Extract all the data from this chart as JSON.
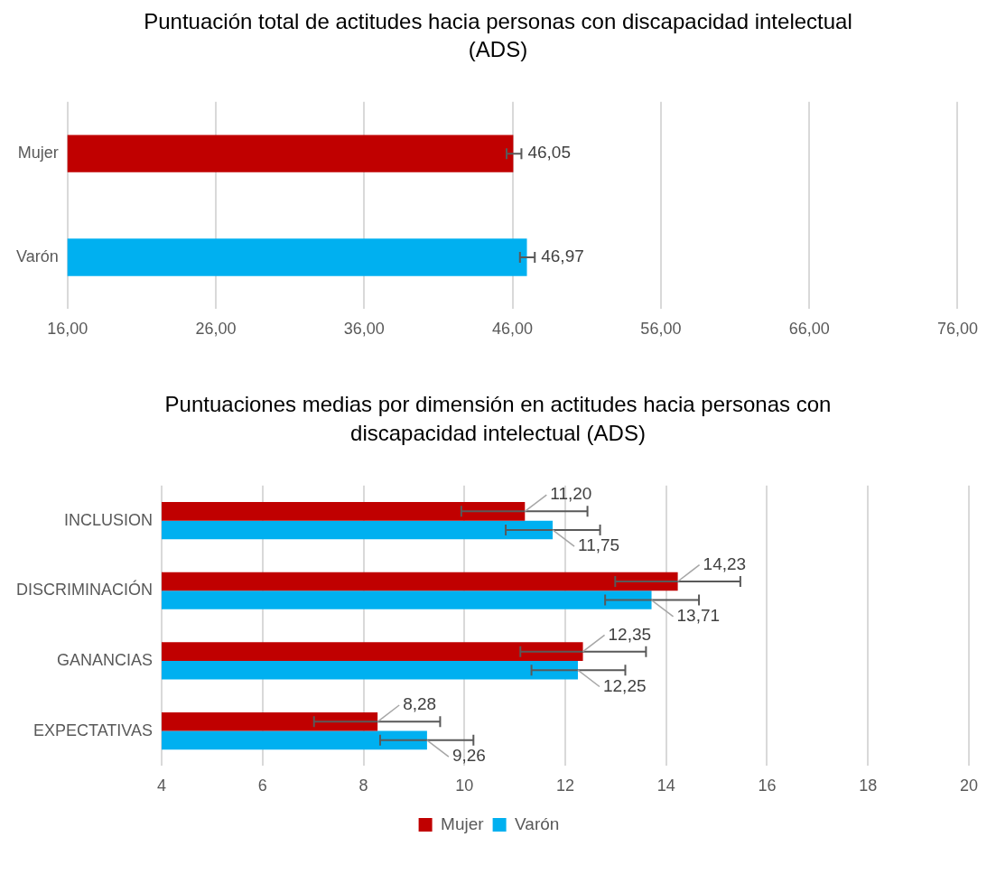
{
  "chart_data": [
    {
      "type": "bar",
      "orientation": "horizontal",
      "title": "Puntuación total de actitudes hacia personas con discapacidad intelectual (ADS)",
      "categories": [
        "Mujer",
        "Varón"
      ],
      "values": [
        46.05,
        46.97
      ],
      "colors": [
        "#c00000",
        "#00b0f0"
      ],
      "errors": [
        [
          45.6,
          46.6
        ],
        [
          46.5,
          47.5
        ]
      ],
      "value_labels": [
        "46,05",
        "46,97"
      ],
      "xlim": [
        16,
        76
      ],
      "xticks": [
        {
          "value": 16,
          "label": "16,00"
        },
        {
          "value": 26,
          "label": "26,00"
        },
        {
          "value": 36,
          "label": "36,00"
        },
        {
          "value": 46,
          "label": "46,00"
        },
        {
          "value": 56,
          "label": "56,00"
        },
        {
          "value": 66,
          "label": "66,00"
        },
        {
          "value": 76,
          "label": "76,00"
        }
      ],
      "grid": "x"
    },
    {
      "type": "bar",
      "orientation": "horizontal",
      "title": "Puntuaciones medias por dimensión en actitudes hacia personas con discapacidad intelectual (ADS)",
      "categories": [
        "INCLUSION",
        "DISCRIMINACIÓN",
        "GANANCIAS",
        "EXPECTATIVAS"
      ],
      "series": [
        {
          "name": "Mujer",
          "color": "#c00000",
          "values": [
            11.2,
            14.23,
            12.35,
            8.28
          ],
          "errors": [
            [
              9.94,
              12.44
            ],
            [
              12.99,
              15.47
            ],
            [
              11.11,
              13.6
            ],
            [
              7.02,
              9.52
            ]
          ],
          "value_labels": [
            "11,20",
            "14,23",
            "12,35",
            "8,28"
          ]
        },
        {
          "name": "Varón",
          "color": "#00b0f0",
          "values": [
            11.75,
            13.71,
            12.25,
            9.26
          ],
          "errors": [
            [
              10.82,
              12.69
            ],
            [
              12.79,
              14.65
            ],
            [
              11.33,
              13.19
            ],
            [
              8.33,
              10.18
            ]
          ],
          "value_labels": [
            "11,75",
            "13,71",
            "12,25",
            "9,26"
          ]
        }
      ],
      "xlim": [
        4,
        20
      ],
      "xticks": [
        4,
        6,
        8,
        10,
        12,
        14,
        16,
        18,
        20
      ],
      "grid": "x",
      "legend": "bottom"
    }
  ]
}
